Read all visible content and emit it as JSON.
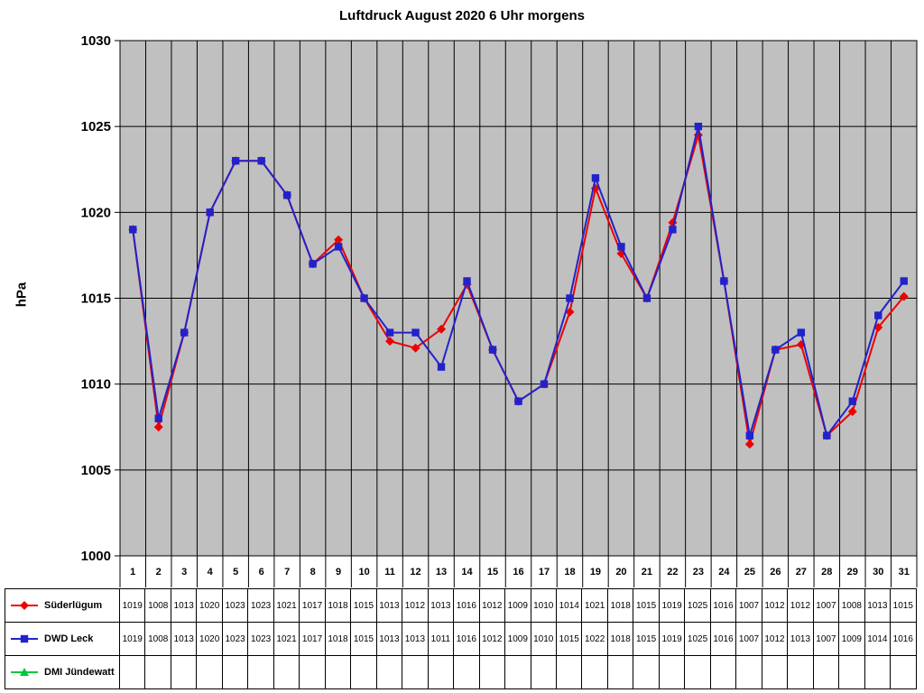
{
  "chart_data": {
    "type": "line",
    "title": "Luftdruck August 2020 6 Uhr morgens",
    "xlabel": "",
    "ylabel": "hPa",
    "ylim": [
      1000,
      1030
    ],
    "yticks": [
      1000,
      1005,
      1010,
      1015,
      1020,
      1025,
      1030
    ],
    "plot_bg": "#c0c0c0",
    "grid": "both",
    "legend_position": "data-table-left",
    "categories": [
      1,
      2,
      3,
      4,
      5,
      6,
      7,
      8,
      9,
      10,
      11,
      12,
      13,
      14,
      15,
      16,
      17,
      18,
      19,
      20,
      21,
      22,
      23,
      24,
      25,
      26,
      27,
      28,
      29,
      30,
      31
    ],
    "series": [
      {
        "name": "Süderlügum",
        "color": "#ee0000",
        "marker": "diamond",
        "values": [
          1019,
          1007.5,
          1013,
          1020,
          1023,
          1023,
          1021,
          1017,
          1018.4,
          1015,
          1012.5,
          1012.1,
          1013.2,
          1015.8,
          1012,
          1009,
          1010,
          1014.2,
          1021.4,
          1017.6,
          1015,
          1019.4,
          1024.5,
          1016,
          1006.5,
          1012,
          1012.3,
          1007,
          1008.4,
          1013.3,
          1015.1
        ],
        "table_values": [
          1019,
          1008,
          1013,
          1020,
          1023,
          1023,
          1021,
          1017,
          1018,
          1015,
          1013,
          1012,
          1013,
          1016,
          1012,
          1009,
          1010,
          1014,
          1021,
          1018,
          1015,
          1019,
          1025,
          1016,
          1007,
          1012,
          1012,
          1007,
          1008,
          1013,
          1015
        ]
      },
      {
        "name": "DWD Leck",
        "color": "#2222cc",
        "marker": "square",
        "values": [
          1019,
          1008,
          1013,
          1020,
          1023,
          1023,
          1021,
          1017,
          1018,
          1015,
          1013,
          1013,
          1011,
          1016,
          1012,
          1009,
          1010,
          1015,
          1022,
          1018,
          1015,
          1019,
          1025,
          1016,
          1007,
          1012,
          1013,
          1007,
          1009,
          1014,
          1016
        ],
        "table_values": [
          1019,
          1008,
          1013,
          1020,
          1023,
          1023,
          1021,
          1017,
          1018,
          1015,
          1013,
          1013,
          1011,
          1016,
          1012,
          1009,
          1010,
          1015,
          1022,
          1018,
          1015,
          1019,
          1025,
          1016,
          1007,
          1012,
          1013,
          1007,
          1009,
          1014,
          1016
        ]
      },
      {
        "name": "DMI Jündewatt",
        "color": "#00c83c",
        "marker": "triangle",
        "values": [],
        "table_values": []
      }
    ]
  }
}
